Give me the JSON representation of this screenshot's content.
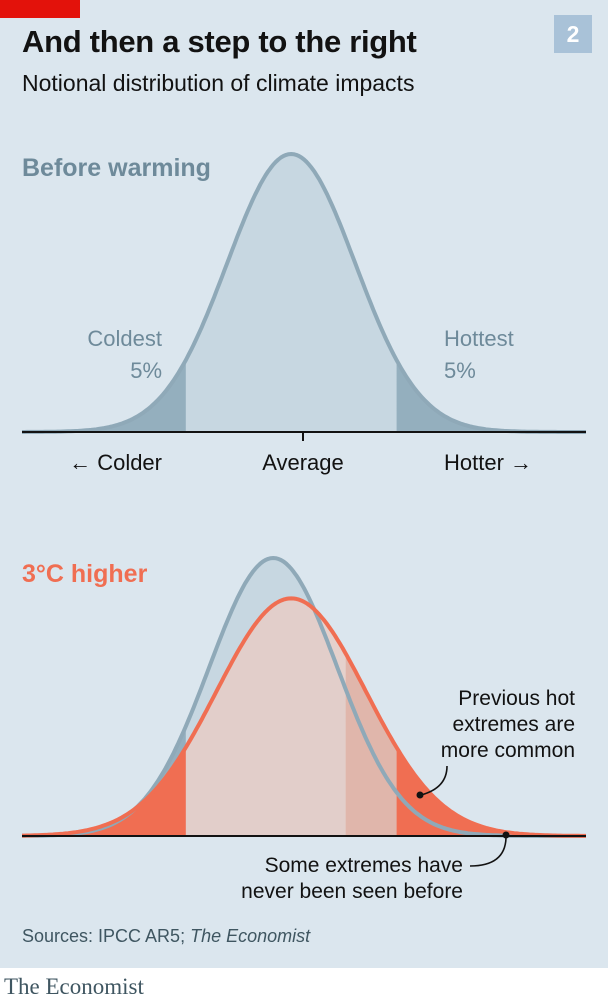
{
  "header": {
    "title": "And then a step to the right",
    "subtitle": "Notional distribution of climate impacts",
    "chart_number": "2"
  },
  "colors": {
    "background": "#dbe6ee",
    "baseline_curve": "#8fa9b8",
    "baseline_fill": "#c7d7e1",
    "baseline_tail": "#94afbe",
    "warmed_curve": "#f06e52",
    "warmed_fill": "#e6cdc6",
    "warmed_tail": "#f06e52",
    "previous_hot_zone": "#e0b6ab",
    "brand_red": "#e3120b"
  },
  "chart_data": [
    {
      "type": "area",
      "name": "before-warming",
      "title": "Before warming",
      "distribution": "normal",
      "mean": 0,
      "sd": 1,
      "tail_threshold_low": -1.645,
      "tail_threshold_high": 1.645,
      "x_range": [
        -4.2,
        4.6
      ],
      "x_tick_labels": [
        "← Colder",
        "Average",
        "Hotter →"
      ],
      "annotations": [
        {
          "line1": "Coldest",
          "line2": "5%"
        },
        {
          "line1": "Hottest",
          "line2": "5%"
        }
      ]
    },
    {
      "type": "area",
      "name": "3c-higher",
      "title": "3°C higher",
      "series": [
        {
          "mean": -0.28,
          "sd": 1
        },
        {
          "mean": 0,
          "sd": 1.17
        }
      ],
      "tail_threshold_low": -1.645,
      "tail_threshold_high": 1.645,
      "previous_hot_threshold": 0.85,
      "x_range": [
        -4.2,
        4.6
      ],
      "annotations": [
        {
          "lines": [
            "Previous hot",
            "extremes are",
            "more common"
          ]
        },
        {
          "lines": [
            "Some extremes have",
            "never been seen before"
          ]
        }
      ]
    }
  ],
  "footer": {
    "source_prefix": "Sources: IPCC AR5; ",
    "source_italic": "The Economist",
    "logo": "The Economist"
  }
}
